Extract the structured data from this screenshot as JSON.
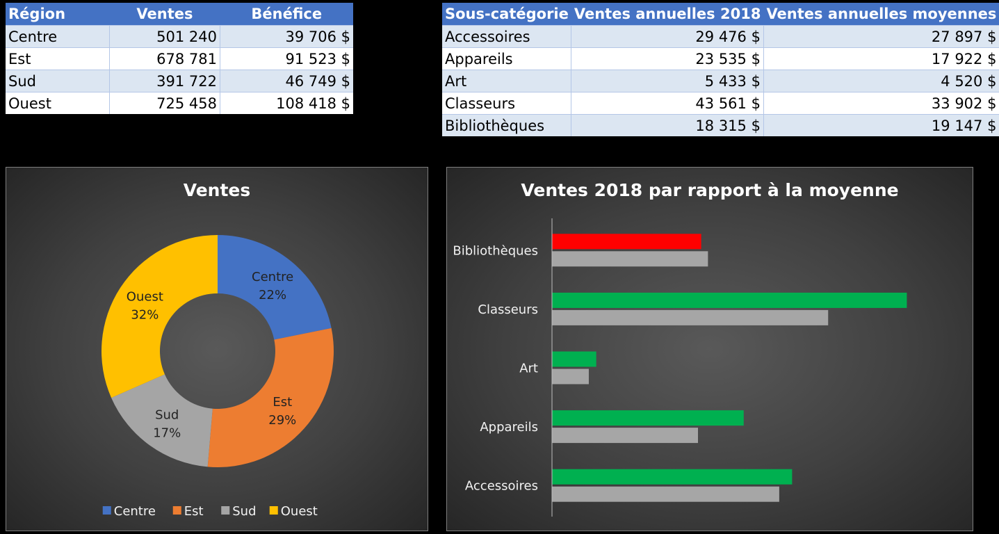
{
  "region_table": {
    "headers": [
      "Région",
      "Ventes",
      "Bénéfice"
    ],
    "rows": [
      [
        "Centre",
        "501 240",
        "39 706 $"
      ],
      [
        "Est",
        "678 781",
        "91 523 $"
      ],
      [
        "Sud",
        "391 722",
        "46 749 $"
      ],
      [
        "Ouest",
        "725 458",
        "108 418 $"
      ]
    ]
  },
  "subcategory_table": {
    "headers": [
      "Sous-catégorie",
      "Ventes annuelles 2018",
      "Ventes annuelles moyennes"
    ],
    "rows": [
      [
        "Accessoires",
        "29 476 $",
        "27 897 $"
      ],
      [
        "Appareils",
        "23 535 $",
        "17 922 $"
      ],
      [
        "Art",
        "5 433 $",
        "4 520 $"
      ],
      [
        "Classeurs",
        "43 561 $",
        "33 902 $"
      ],
      [
        "Bibliothèques",
        "18 315 $",
        "19 147 $"
      ]
    ]
  },
  "colors": {
    "table_header": "#4472c4",
    "above_average": "#00b050",
    "below_average": "#ff0000",
    "average_bar": "#a6a6a6"
  },
  "chart_data": [
    {
      "type": "pie",
      "variant": "donut",
      "title": "Ventes",
      "categories": [
        "Centre",
        "Est",
        "Sud",
        "Ouest"
      ],
      "values": [
        501240,
        678781,
        391722,
        725458
      ],
      "percent_labels": [
        "22%",
        "29%",
        "17%",
        "32%"
      ],
      "colors": [
        "#4472c4",
        "#ed7d31",
        "#a5a5a5",
        "#ffc000"
      ],
      "legend": "bottom"
    },
    {
      "type": "bar",
      "orientation": "horizontal",
      "title": "Ventes 2018 par rapport à la moyenne",
      "categories": [
        "Accessoires",
        "Appareils",
        "Art",
        "Classeurs",
        "Bibliothèques"
      ],
      "series": [
        {
          "values": [
            29476,
            23535,
            5433,
            43561,
            18315
          ]
        },
        {
          "values": [
            27897,
            17922,
            4520,
            33902,
            19147
          ]
        }
      ],
      "xlim": [
        0,
        46000
      ],
      "grid": false,
      "legend": "none"
    }
  ]
}
